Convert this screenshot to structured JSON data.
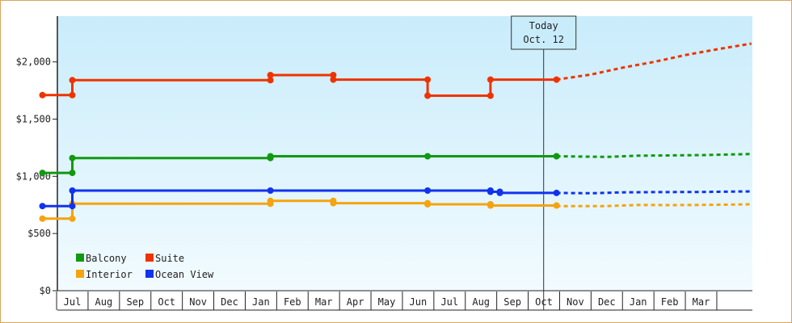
{
  "chart_data": {
    "type": "line",
    "title": "",
    "xlabel": "",
    "ylabel": "",
    "ylim": [
      0,
      2400
    ],
    "y_ticks": [
      {
        "value": 0,
        "label": "$0"
      },
      {
        "value": 500,
        "label": "$500"
      },
      {
        "value": 1000,
        "label": "$1,000"
      },
      {
        "value": 1500,
        "label": "$1,500"
      },
      {
        "value": 2000,
        "label": "$2,000"
      }
    ],
    "x_ticks": [
      "Jul",
      "Aug",
      "Sep",
      "Oct",
      "Nov",
      "Dec",
      "Jan",
      "Feb",
      "Mar",
      "Apr",
      "May",
      "Jun",
      "Jul",
      "Aug",
      "Sep",
      "Oct",
      "Nov",
      "Dec",
      "Jan",
      "Feb",
      "Mar"
    ],
    "today": {
      "line1": "Today",
      "line2": "Oct. 12",
      "month_index": 15
    },
    "legend": {
      "placement": "bottom-left"
    },
    "series": [
      {
        "name": "Balcony",
        "color": "#119911",
        "points": [
          [
            -0.95,
            1030
          ],
          [
            0,
            1030
          ],
          [
            0,
            1160
          ],
          [
            6.3,
            1160
          ],
          [
            6.3,
            1175
          ],
          [
            11.3,
            1175
          ],
          [
            15.4,
            1175
          ]
        ],
        "forecast": [
          [
            15.4,
            1175
          ],
          [
            17,
            1170
          ],
          [
            18,
            1180
          ],
          [
            20,
            1185
          ],
          [
            21.6,
            1195
          ]
        ]
      },
      {
        "name": "Suite",
        "color": "#ee3300",
        "points": [
          [
            -0.95,
            1710
          ],
          [
            0,
            1710
          ],
          [
            0,
            1840
          ],
          [
            6.3,
            1840
          ],
          [
            6.3,
            1885
          ],
          [
            8.3,
            1885
          ],
          [
            8.3,
            1845
          ],
          [
            11.3,
            1845
          ],
          [
            11.3,
            1705
          ],
          [
            13.3,
            1705
          ],
          [
            13.3,
            1845
          ],
          [
            15.4,
            1845
          ]
        ],
        "forecast": [
          [
            15.4,
            1845
          ],
          [
            16.5,
            1890
          ],
          [
            17.5,
            1950
          ],
          [
            18.5,
            2000
          ],
          [
            19.5,
            2060
          ],
          [
            20.5,
            2110
          ],
          [
            21.6,
            2160
          ]
        ]
      },
      {
        "name": "Interior",
        "color": "#f5a30f",
        "points": [
          [
            -0.95,
            630
          ],
          [
            0,
            630
          ],
          [
            0,
            760
          ],
          [
            6.3,
            760
          ],
          [
            6.3,
            785
          ],
          [
            8.3,
            785
          ],
          [
            8.3,
            765
          ],
          [
            11.3,
            765
          ],
          [
            11.3,
            755
          ],
          [
            13.3,
            755
          ],
          [
            13.3,
            745
          ],
          [
            15.4,
            745
          ]
        ],
        "forecast": [
          [
            15.4,
            740
          ],
          [
            17,
            740
          ],
          [
            18,
            750
          ],
          [
            19,
            748
          ],
          [
            20,
            750
          ],
          [
            21.6,
            755
          ]
        ]
      },
      {
        "name": "Ocean View",
        "color": "#1133ee",
        "points": [
          [
            -0.95,
            740
          ],
          [
            0,
            740
          ],
          [
            0,
            875
          ],
          [
            6.3,
            875
          ],
          [
            11.3,
            875
          ],
          [
            13.3,
            875
          ],
          [
            13.3,
            865
          ],
          [
            13.6,
            865
          ],
          [
            13.6,
            855
          ],
          [
            15.4,
            855
          ]
        ],
        "forecast": [
          [
            15.4,
            855
          ],
          [
            16.5,
            852
          ],
          [
            17.5,
            860
          ],
          [
            18.5,
            862
          ],
          [
            20,
            863
          ],
          [
            21.6,
            868
          ]
        ]
      }
    ]
  }
}
